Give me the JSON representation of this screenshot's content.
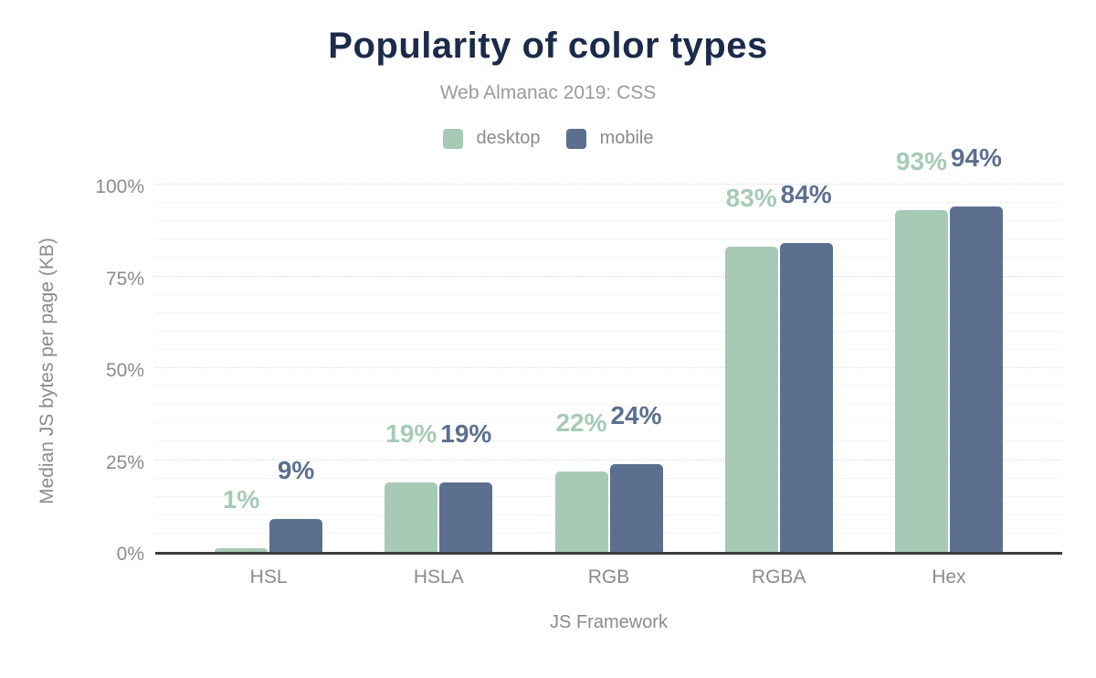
{
  "colors": {
    "desktop": "#a6cab6",
    "mobile": "#5d6f8e",
    "title_text": "#1b2b4a",
    "muted_text": "#8b8b8e",
    "axis_line": "#3c3c3c",
    "grid_major": "#d9d9d9",
    "grid_minor": "#f4f4f4"
  },
  "chart_data": {
    "type": "bar",
    "title": "Popularity of color types",
    "subtitle": "Web Almanac 2019: CSS",
    "xlabel": "JS Framework",
    "ylabel": "Median JS bytes per page (KB)",
    "categories": [
      "HSL",
      "HSLA",
      "RGB",
      "RGBA",
      "Hex"
    ],
    "series": [
      {
        "name": "desktop",
        "color_key": "desktop",
        "values": [
          1,
          19,
          22,
          83,
          93
        ],
        "labels": [
          "1%",
          "19%",
          "22%",
          "83%",
          "93%"
        ]
      },
      {
        "name": "mobile",
        "color_key": "mobile",
        "values": [
          9,
          19,
          24,
          84,
          94
        ],
        "labels": [
          "9%",
          "19%",
          "24%",
          "84%",
          "94%"
        ]
      }
    ],
    "ylim": [
      0,
      100
    ],
    "yticks": [
      0,
      25,
      50,
      75,
      100
    ],
    "ytick_labels": [
      "0%",
      "25%",
      "50%",
      "75%",
      "100%"
    ],
    "minor_grid_step": 5,
    "grid": true,
    "legend_position": "top"
  }
}
